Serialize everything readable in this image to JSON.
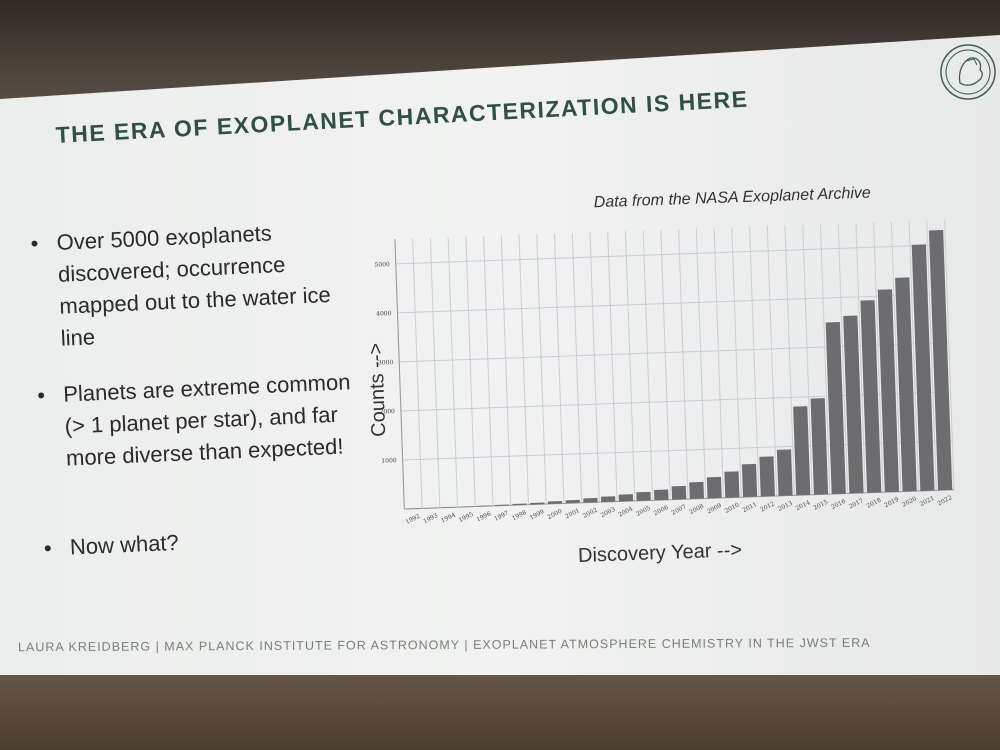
{
  "slide": {
    "title": "THE ERA OF EXOPLANET CHARACTERIZATION IS HERE",
    "logo": "max-planck-minerva-logo",
    "bullets": [
      {
        "text": "Over 5000 exoplanets discovered; occurrence mapped out to the water ice line"
      },
      {
        "text": "Planets are extreme common (> 1 planet per star), and far more diverse than expected!"
      },
      {
        "text": "Now what?"
      }
    ],
    "footer": "LAURA KREIDBERG | MAX PLANCK INSTITUTE FOR ASTRONOMY | EXOPLANET ATMOSPHERE CHEMISTRY IN THE JWST ERA",
    "colors": {
      "title": "#2f4f47",
      "bar": "#6d6d6f",
      "grid": "#c9cfd8"
    }
  },
  "chart_data": {
    "type": "bar",
    "annotation": "Data from the NASA Exoplanet Archive",
    "xlabel": "Discovery Year -->",
    "ylabel": "Counts -->",
    "categories": [
      "1992",
      "1993",
      "1994",
      "1995",
      "1996",
      "1997",
      "1998",
      "1999",
      "2000",
      "2001",
      "2002",
      "2003",
      "2004",
      "2005",
      "2006",
      "2007",
      "2008",
      "2009",
      "2010",
      "2011",
      "2012",
      "2013",
      "2014",
      "2015",
      "2016",
      "2017",
      "2018",
      "2019",
      "2020",
      "2021",
      "2022"
    ],
    "values": [
      2,
      3,
      4,
      5,
      12,
      18,
      24,
      34,
      50,
      62,
      90,
      110,
      140,
      175,
      210,
      270,
      340,
      430,
      530,
      670,
      810,
      940,
      1810,
      1960,
      3500,
      3620,
      3920,
      4130,
      4360,
      5020,
      5300
    ],
    "yticks": [
      1000,
      2000,
      3000,
      4000,
      5000
    ],
    "ylim": [
      0,
      5300
    ],
    "grid": true,
    "legend": "none"
  }
}
